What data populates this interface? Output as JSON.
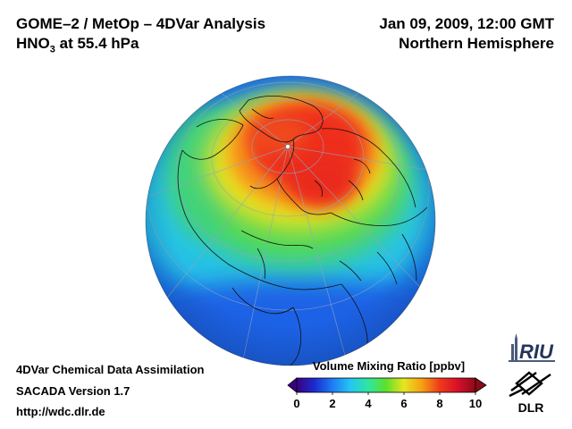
{
  "header": {
    "title_line1": "GOME–2 / MetOp – 4DVar Analysis",
    "title_species": "HNO",
    "title_subscript": "3",
    "title_rest": " at 55.4 hPa",
    "date": "Jan 09, 2009, 12:00 GMT",
    "region": "Northern Hemisphere"
  },
  "footer": {
    "line1": "4DVar Chemical Data Assimilation",
    "line2": "SACADA Version 1.7",
    "line3": "http://wdc.dlr.de"
  },
  "colorbar": {
    "title": "Volume Mixing Ratio [ppbv]",
    "ticks": [
      0,
      2,
      4,
      6,
      8,
      10
    ],
    "min": 0,
    "max": 10,
    "stops": [
      "#3a0080",
      "#1a2ccf",
      "#1e7cf5",
      "#25c5f3",
      "#2ee6a0",
      "#5ee02a",
      "#e8e421",
      "#f5a012",
      "#f03a1a",
      "#d8102a",
      "#8c0a18"
    ]
  },
  "map": {
    "projection": "orthographic",
    "center": "North Pole",
    "colors": {
      "ocean_low": "#1a6ef0",
      "mid": "#26c8d0",
      "green": "#4fd95a",
      "yellow": "#f2e21e",
      "orange": "#f7901a",
      "red": "#ef2a1e"
    }
  },
  "logos": {
    "riu": "RIU",
    "dlr": "DLR"
  }
}
